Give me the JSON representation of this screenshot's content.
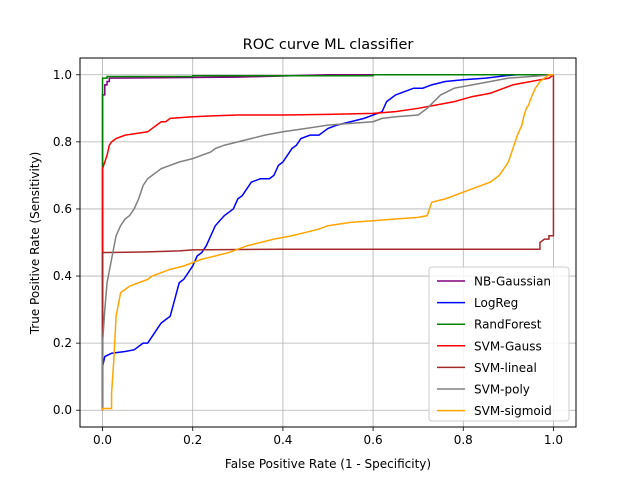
{
  "chart_data": {
    "type": "line",
    "title": "ROC curve ML classifier",
    "xlabel": "False Positive Rate (1 - Specificity)",
    "ylabel": "True Positive Rate (Sensitivity)",
    "xlim": [
      -0.05,
      1.05
    ],
    "ylim": [
      -0.05,
      1.05
    ],
    "xticks": [
      0.0,
      0.2,
      0.4,
      0.6,
      0.8,
      1.0
    ],
    "xtick_labels": [
      "0.0",
      "0.2",
      "0.4",
      "0.6",
      "0.8",
      "1.0"
    ],
    "yticks": [
      0.0,
      0.2,
      0.4,
      0.6,
      0.8,
      1.0
    ],
    "ytick_labels": [
      "0.0",
      "0.2",
      "0.4",
      "0.6",
      "0.8",
      "1.0"
    ],
    "grid": true,
    "legend_position": "lower-right",
    "series": [
      {
        "name": "NB-Gaussian",
        "color": "#800080",
        "points": [
          [
            0,
            0
          ],
          [
            0,
            0.94
          ],
          [
            0.005,
            0.94
          ],
          [
            0.005,
            0.97
          ],
          [
            0.01,
            0.97
          ],
          [
            0.01,
            0.98
          ],
          [
            0.015,
            0.98
          ],
          [
            0.015,
            0.99
          ],
          [
            0.02,
            0.99
          ],
          [
            0.3,
            0.993
          ],
          [
            0.5,
            1.0
          ],
          [
            1.0,
            1.0
          ]
        ]
      },
      {
        "name": "LogReg",
        "color": "#0000ff",
        "points": [
          [
            0,
            0
          ],
          [
            0,
            0.13
          ],
          [
            0.005,
            0.16
          ],
          [
            0.02,
            0.17
          ],
          [
            0.05,
            0.175
          ],
          [
            0.07,
            0.18
          ],
          [
            0.09,
            0.2
          ],
          [
            0.1,
            0.2
          ],
          [
            0.11,
            0.22
          ],
          [
            0.12,
            0.24
          ],
          [
            0.13,
            0.26
          ],
          [
            0.14,
            0.27
          ],
          [
            0.15,
            0.28
          ],
          [
            0.16,
            0.33
          ],
          [
            0.17,
            0.38
          ],
          [
            0.18,
            0.39
          ],
          [
            0.19,
            0.41
          ],
          [
            0.2,
            0.43
          ],
          [
            0.21,
            0.46
          ],
          [
            0.22,
            0.47
          ],
          [
            0.23,
            0.49
          ],
          [
            0.24,
            0.52
          ],
          [
            0.25,
            0.55
          ],
          [
            0.27,
            0.58
          ],
          [
            0.29,
            0.6
          ],
          [
            0.3,
            0.63
          ],
          [
            0.31,
            0.64
          ],
          [
            0.32,
            0.66
          ],
          [
            0.33,
            0.68
          ],
          [
            0.35,
            0.69
          ],
          [
            0.37,
            0.69
          ],
          [
            0.38,
            0.7
          ],
          [
            0.39,
            0.73
          ],
          [
            0.4,
            0.74
          ],
          [
            0.41,
            0.76
          ],
          [
            0.42,
            0.78
          ],
          [
            0.43,
            0.79
          ],
          [
            0.44,
            0.81
          ],
          [
            0.46,
            0.82
          ],
          [
            0.48,
            0.82
          ],
          [
            0.5,
            0.84
          ],
          [
            0.52,
            0.85
          ],
          [
            0.55,
            0.86
          ],
          [
            0.58,
            0.87
          ],
          [
            0.6,
            0.88
          ],
          [
            0.62,
            0.89
          ],
          [
            0.63,
            0.92
          ],
          [
            0.64,
            0.93
          ],
          [
            0.65,
            0.94
          ],
          [
            0.67,
            0.95
          ],
          [
            0.69,
            0.96
          ],
          [
            0.71,
            0.96
          ],
          [
            0.73,
            0.97
          ],
          [
            0.76,
            0.98
          ],
          [
            0.8,
            0.985
          ],
          [
            0.85,
            0.99
          ],
          [
            0.9,
            0.998
          ],
          [
            0.92,
            1.0
          ],
          [
            1.0,
            1.0
          ]
        ]
      },
      {
        "name": "RandForest",
        "color": "#008000",
        "points": [
          [
            0,
            0
          ],
          [
            0,
            0.99
          ],
          [
            0.01,
            0.99
          ],
          [
            0.01,
            0.995
          ],
          [
            0.2,
            0.995
          ],
          [
            0.2,
            0.997
          ],
          [
            0.6,
            0.997
          ],
          [
            0.6,
            1.0
          ],
          [
            1.0,
            1.0
          ]
        ]
      },
      {
        "name": "SVM-Gauss",
        "color": "#ff0000",
        "points": [
          [
            0,
            0
          ],
          [
            0,
            0.72
          ],
          [
            0.005,
            0.74
          ],
          [
            0.01,
            0.76
          ],
          [
            0.015,
            0.79
          ],
          [
            0.02,
            0.8
          ],
          [
            0.03,
            0.81
          ],
          [
            0.05,
            0.82
          ],
          [
            0.1,
            0.83
          ],
          [
            0.11,
            0.84
          ],
          [
            0.12,
            0.85
          ],
          [
            0.13,
            0.86
          ],
          [
            0.14,
            0.86
          ],
          [
            0.15,
            0.87
          ],
          [
            0.2,
            0.875
          ],
          [
            0.25,
            0.878
          ],
          [
            0.3,
            0.88
          ],
          [
            0.4,
            0.88
          ],
          [
            0.5,
            0.882
          ],
          [
            0.6,
            0.885
          ],
          [
            0.65,
            0.89
          ],
          [
            0.7,
            0.9
          ],
          [
            0.74,
            0.91
          ],
          [
            0.78,
            0.92
          ],
          [
            0.82,
            0.935
          ],
          [
            0.86,
            0.945
          ],
          [
            0.89,
            0.96
          ],
          [
            0.91,
            0.97
          ],
          [
            0.93,
            0.975
          ],
          [
            0.95,
            0.98
          ],
          [
            0.97,
            0.985
          ],
          [
            0.99,
            0.99
          ],
          [
            1.0,
            1.0
          ]
        ]
      },
      {
        "name": "SVM-lineal",
        "color": "#a52a2a",
        "points": [
          [
            0,
            0
          ],
          [
            0,
            0.47
          ],
          [
            0.01,
            0.47
          ],
          [
            0.1,
            0.472
          ],
          [
            0.17,
            0.475
          ],
          [
            0.2,
            0.478
          ],
          [
            0.4,
            0.48
          ],
          [
            0.6,
            0.48
          ],
          [
            0.8,
            0.48
          ],
          [
            0.97,
            0.48
          ],
          [
            0.97,
            0.5
          ],
          [
            0.98,
            0.51
          ],
          [
            0.99,
            0.51
          ],
          [
            0.99,
            0.52
          ],
          [
            1.0,
            0.52
          ],
          [
            1.0,
            1.0
          ]
        ]
      },
      {
        "name": "SVM-poly",
        "color": "#808080",
        "points": [
          [
            0,
            0
          ],
          [
            0,
            0.2
          ],
          [
            0.005,
            0.3
          ],
          [
            0.01,
            0.38
          ],
          [
            0.02,
            0.45
          ],
          [
            0.03,
            0.52
          ],
          [
            0.04,
            0.55
          ],
          [
            0.05,
            0.57
          ],
          [
            0.06,
            0.58
          ],
          [
            0.07,
            0.6
          ],
          [
            0.08,
            0.63
          ],
          [
            0.09,
            0.67
          ],
          [
            0.1,
            0.69
          ],
          [
            0.11,
            0.7
          ],
          [
            0.12,
            0.71
          ],
          [
            0.13,
            0.72
          ],
          [
            0.15,
            0.73
          ],
          [
            0.17,
            0.74
          ],
          [
            0.2,
            0.75
          ],
          [
            0.22,
            0.76
          ],
          [
            0.24,
            0.77
          ],
          [
            0.25,
            0.78
          ],
          [
            0.27,
            0.79
          ],
          [
            0.3,
            0.8
          ],
          [
            0.33,
            0.81
          ],
          [
            0.36,
            0.82
          ],
          [
            0.4,
            0.83
          ],
          [
            0.45,
            0.84
          ],
          [
            0.5,
            0.85
          ],
          [
            0.55,
            0.855
          ],
          [
            0.6,
            0.86
          ],
          [
            0.62,
            0.87
          ],
          [
            0.65,
            0.875
          ],
          [
            0.7,
            0.88
          ],
          [
            0.72,
            0.9
          ],
          [
            0.75,
            0.94
          ],
          [
            0.78,
            0.96
          ],
          [
            0.82,
            0.97
          ],
          [
            0.86,
            0.98
          ],
          [
            0.9,
            0.99
          ],
          [
            0.95,
            0.995
          ],
          [
            1.0,
            1.0
          ]
        ]
      },
      {
        "name": "SVM-sigmoid",
        "color": "#ffa500",
        "points": [
          [
            0,
            0
          ],
          [
            0,
            0.005
          ],
          [
            0.02,
            0.005
          ],
          [
            0.02,
            0.05
          ],
          [
            0.025,
            0.15
          ],
          [
            0.03,
            0.28
          ],
          [
            0.04,
            0.35
          ],
          [
            0.06,
            0.37
          ],
          [
            0.08,
            0.38
          ],
          [
            0.1,
            0.39
          ],
          [
            0.11,
            0.4
          ],
          [
            0.13,
            0.41
          ],
          [
            0.15,
            0.42
          ],
          [
            0.18,
            0.43
          ],
          [
            0.2,
            0.44
          ],
          [
            0.22,
            0.45
          ],
          [
            0.25,
            0.46
          ],
          [
            0.28,
            0.47
          ],
          [
            0.32,
            0.49
          ],
          [
            0.35,
            0.5
          ],
          [
            0.38,
            0.51
          ],
          [
            0.42,
            0.52
          ],
          [
            0.45,
            0.53
          ],
          [
            0.48,
            0.54
          ],
          [
            0.5,
            0.55
          ],
          [
            0.55,
            0.56
          ],
          [
            0.6,
            0.565
          ],
          [
            0.65,
            0.57
          ],
          [
            0.7,
            0.575
          ],
          [
            0.72,
            0.58
          ],
          [
            0.73,
            0.62
          ],
          [
            0.76,
            0.63
          ],
          [
            0.8,
            0.65
          ],
          [
            0.84,
            0.67
          ],
          [
            0.86,
            0.68
          ],
          [
            0.88,
            0.7
          ],
          [
            0.9,
            0.74
          ],
          [
            0.91,
            0.78
          ],
          [
            0.92,
            0.82
          ],
          [
            0.93,
            0.85
          ],
          [
            0.935,
            0.88
          ],
          [
            0.94,
            0.9
          ],
          [
            0.945,
            0.91
          ],
          [
            0.95,
            0.93
          ],
          [
            0.96,
            0.96
          ],
          [
            0.97,
            0.98
          ],
          [
            0.98,
            0.99
          ],
          [
            0.99,
            1.0
          ],
          [
            1.0,
            1.0
          ]
        ]
      }
    ]
  }
}
